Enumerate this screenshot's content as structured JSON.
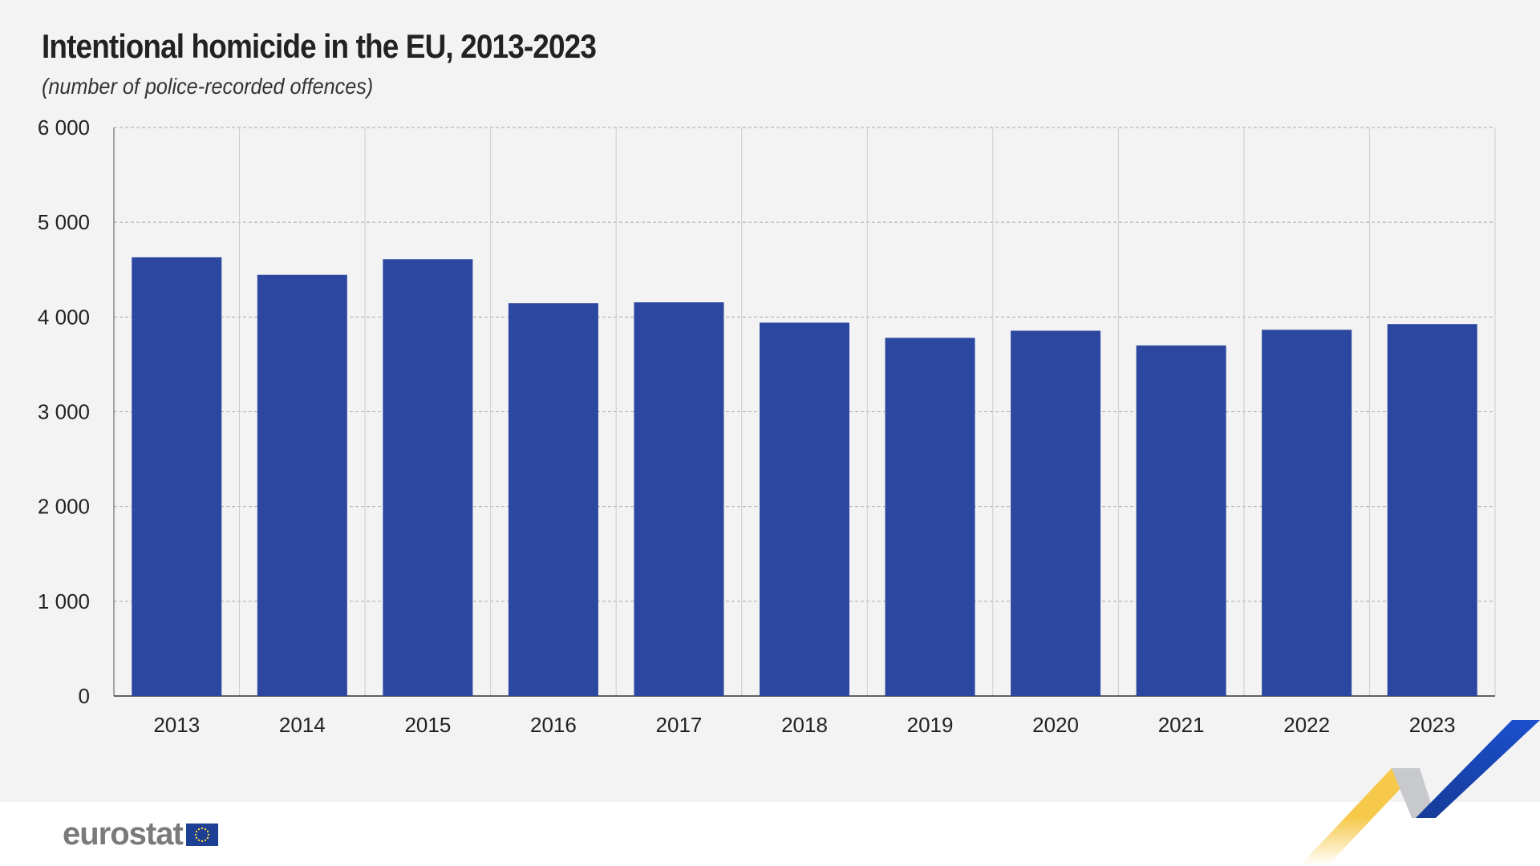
{
  "chart_data": {
    "type": "bar",
    "title": "Intentional homicide in the EU, 2013-2023",
    "subtitle": "(number of police-recorded offences)",
    "categories": [
      "2013",
      "2014",
      "2015",
      "2016",
      "2017",
      "2018",
      "2019",
      "2020",
      "2021",
      "2022",
      "2023"
    ],
    "values": [
      4630,
      4445,
      4610,
      4145,
      4155,
      3940,
      3780,
      3855,
      3700,
      3865,
      3925
    ],
    "ylim": [
      0,
      6000
    ],
    "yticks": [
      0,
      1000,
      2000,
      3000,
      4000,
      5000,
      6000
    ],
    "ytick_labels": [
      "0",
      "1 000",
      "2 000",
      "3 000",
      "4 000",
      "5 000",
      "6 000"
    ],
    "grid": true,
    "bar_color": "#2b47a0"
  },
  "footer": {
    "logo": "eurostat"
  }
}
